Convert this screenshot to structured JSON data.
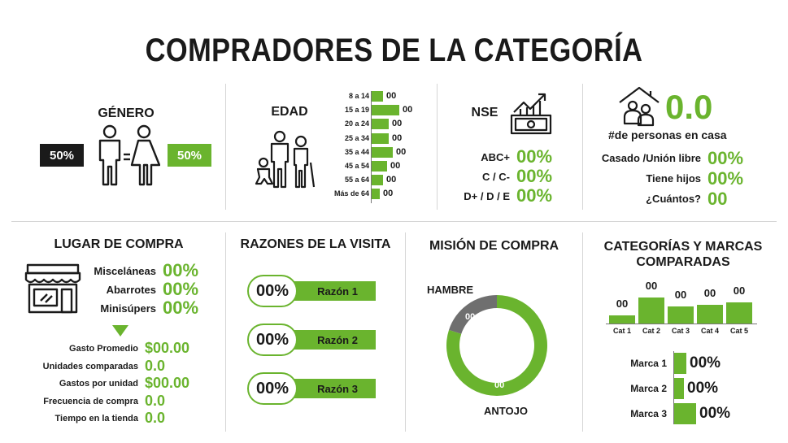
{
  "title": "COMPRADORES DE LA CATEGORÍA",
  "genero": {
    "title": "GÉNERO",
    "male_pct": "50%",
    "female_pct": "50%"
  },
  "edad": {
    "title": "EDAD",
    "rows": [
      {
        "label": "8 a 14",
        "value": "00",
        "fill": 0.4
      },
      {
        "label": "15 a 19",
        "value": "00",
        "fill": 1.0
      },
      {
        "label": "20 a 24",
        "value": "00",
        "fill": 0.62
      },
      {
        "label": "25 a 34",
        "value": "00",
        "fill": 0.62
      },
      {
        "label": "35 a 44",
        "value": "00",
        "fill": 0.75
      },
      {
        "label": "45 a 54",
        "value": "00",
        "fill": 0.55
      },
      {
        "label": "55 a 64",
        "value": "00",
        "fill": 0.4
      },
      {
        "label": "Más de 64",
        "value": "00",
        "fill": 0.3
      }
    ]
  },
  "nse": {
    "title": "NSE",
    "rows": [
      {
        "label": "ABC+",
        "value": "00%"
      },
      {
        "label": "C / C-",
        "value": "00%"
      },
      {
        "label": "D+ / D / E",
        "value": "00%"
      }
    ]
  },
  "hogar": {
    "value": "0.0",
    "label": "#de personas en casa",
    "rows": [
      {
        "label": "Casado /Unión libre",
        "value": "00%"
      },
      {
        "label": "Tiene hijos",
        "value": "00%"
      },
      {
        "label": "¿Cuántos?",
        "value": "00"
      }
    ]
  },
  "lugar": {
    "title": "LUGAR DE COMPRA",
    "rows": [
      {
        "label": "Misceláneas",
        "value": "00%"
      },
      {
        "label": "Abarrotes",
        "value": "00%"
      },
      {
        "label": "Minisúpers",
        "value": "00%"
      }
    ],
    "stats": [
      {
        "label": "Gasto Promedio",
        "value": "$00.00"
      },
      {
        "label": "Unidades comparadas",
        "value": "0.0"
      },
      {
        "label": "Gastos por unidad",
        "value": "$00.00"
      },
      {
        "label": "Frecuencia de compra",
        "value": "0.0"
      },
      {
        "label": "Tiempo en la tienda",
        "value": "0.0"
      }
    ]
  },
  "razones": {
    "title": "RAZONES DE LA VISITA",
    "rows": [
      {
        "pct": "00%",
        "label": "Razón 1"
      },
      {
        "pct": "00%",
        "label": "Razón 2"
      },
      {
        "pct": "00%",
        "label": "Razón 3"
      }
    ]
  },
  "mision": {
    "title": "MISIÓN DE COMPRA",
    "top_label": "HAMBRE",
    "bottom_label": "ANTOJO",
    "hambre_value": "00",
    "antojo_value": "00",
    "hambre_share": 0.2,
    "colors": {
      "hambre": "#6f6f6f",
      "antojo": "#6ab42e"
    }
  },
  "categorias": {
    "title_line1": "CATEGORÍAS Y MARCAS",
    "title_line2": "COMPARADAS",
    "cats": [
      {
        "label": "Cat 1",
        "value": "00",
        "fill": 0.3
      },
      {
        "label": "Cat 2",
        "value": "00",
        "fill": 1.0
      },
      {
        "label": "Cat 3",
        "value": "00",
        "fill": 0.65
      },
      {
        "label": "Cat 4",
        "value": "00",
        "fill": 0.72
      },
      {
        "label": "Cat 5",
        "value": "00",
        "fill": 0.8
      }
    ],
    "marcas": [
      {
        "label": "Marca 1",
        "value": "00%",
        "fill": 0.55
      },
      {
        "label": "Marca 2",
        "value": "00%",
        "fill": 0.45
      },
      {
        "label": "Marca 3",
        "value": "00%",
        "fill": 1.0
      }
    ]
  },
  "colors": {
    "accent": "#6ab42e",
    "dark": "#1a1a1a",
    "gray": "#6f6f6f"
  }
}
